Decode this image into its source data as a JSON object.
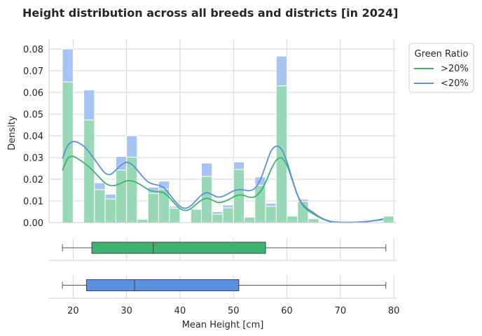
{
  "chart_data": {
    "type": "histogram",
    "title": "Height distribution across all breeds and districts [in 2024]",
    "xlabel": "Mean Height [cm]",
    "ylabel": "Density",
    "xlim": [
      15.5,
      80.5
    ],
    "ylim": [
      0,
      0.0845
    ],
    "x_ticks": [
      20,
      30,
      40,
      50,
      60,
      70,
      80
    ],
    "y_ticks": [
      0.0,
      0.01,
      0.02,
      0.03,
      0.04,
      0.05,
      0.06,
      0.07,
      0.08
    ],
    "x_tick_labels": [
      "20",
      "30",
      "40",
      "50",
      "60",
      "70",
      "80"
    ],
    "y_tick_labels": [
      "0.00",
      "0.01",
      "0.02",
      "0.03",
      "0.04",
      "0.05",
      "0.06",
      "0.07",
      "0.08"
    ],
    "grid": true,
    "legend": {
      "title": "Green Ratio",
      "placement": "upper right, outside plot",
      "entries": [
        ">20%",
        "<20%"
      ]
    },
    "bins": {
      "start": 18,
      "width": 2,
      "count": 31
    },
    "series": [
      {
        "name": ">20%",
        "color": "#3cb371",
        "hist_color": "#98d8b4",
        "hist_values": [
          0.0648,
          0,
          0.0473,
          0.0152,
          0.0109,
          0.0242,
          0.0302,
          0.0015,
          0.0135,
          0.0155,
          0.0067,
          0,
          0.0062,
          0.0213,
          0.0039,
          0.0068,
          0.0245,
          0.0025,
          0.0172,
          0.0075,
          0.063,
          0.003,
          0.0098,
          0.0018,
          0,
          0,
          0,
          0,
          0,
          0,
          0.003
        ],
        "kde_x": [
          18,
          19,
          20,
          21,
          22,
          23,
          24,
          25,
          26,
          27,
          28,
          29,
          30,
          31,
          32,
          33,
          34,
          35,
          36,
          37,
          38,
          39,
          40,
          41,
          42,
          43,
          44,
          45,
          46,
          47,
          48,
          49,
          50,
          51,
          52,
          53,
          54,
          55,
          56,
          57,
          58,
          59,
          60,
          61,
          62,
          63,
          64,
          65,
          66,
          67,
          68,
          69,
          70,
          71,
          72,
          73,
          74,
          75,
          76,
          77,
          78
        ],
        "kde_y": [
          0.024,
          0.0295,
          0.0305,
          0.0292,
          0.0276,
          0.0256,
          0.0232,
          0.0206,
          0.0182,
          0.0171,
          0.0172,
          0.0182,
          0.0192,
          0.0192,
          0.0183,
          0.0169,
          0.0153,
          0.0144,
          0.0142,
          0.0137,
          0.0116,
          0.0088,
          0.0065,
          0.0056,
          0.0064,
          0.0084,
          0.0103,
          0.0112,
          0.0104,
          0.0093,
          0.0095,
          0.0105,
          0.0118,
          0.0127,
          0.0125,
          0.0117,
          0.0119,
          0.0142,
          0.0185,
          0.0243,
          0.0287,
          0.0298,
          0.0264,
          0.0196,
          0.0125,
          0.0079,
          0.0055,
          0.0039,
          0.0025,
          0.0013,
          0.0005,
          0.0002,
          0.0001,
          0.0001,
          0.0001,
          0.0002,
          0.0003,
          0.0005,
          0.0008,
          0.0011,
          0.0014
        ],
        "box": {
          "min": 18,
          "q1": 23.5,
          "median": 35,
          "q3": 56,
          "max": 78.5
        }
      },
      {
        "name": "<20%",
        "color": "#5b8fe0",
        "hist_color": "#a8c4f2",
        "hist_values": [
          0.0152,
          0,
          0.0138,
          0.0031,
          0.0022,
          0.0063,
          0.0098,
          0.0002,
          0.0028,
          0.0036,
          0.0008,
          0,
          0.0002,
          0.0061,
          0.0011,
          0.0013,
          0.0034,
          0.0003,
          0.0038,
          0.0014,
          0.0137,
          0.0001,
          0.001,
          0.0001,
          0,
          0,
          0,
          0,
          0,
          0,
          0.0003
        ],
        "kde_x": [
          18,
          19,
          20,
          21,
          22,
          23,
          24,
          25,
          26,
          27,
          28,
          29,
          30,
          31,
          32,
          33,
          34,
          35,
          36,
          37,
          38,
          39,
          40,
          41,
          42,
          43,
          44,
          45,
          46,
          47,
          48,
          49,
          50,
          51,
          52,
          53,
          54,
          55,
          56,
          57,
          58,
          59,
          60,
          61,
          62,
          63,
          64,
          65,
          66,
          67,
          68,
          69,
          70,
          71,
          72,
          73,
          74,
          75,
          76,
          77,
          78
        ],
        "kde_y": [
          0.0295,
          0.0355,
          0.0373,
          0.0368,
          0.0352,
          0.0325,
          0.0292,
          0.0258,
          0.0228,
          0.0222,
          0.0242,
          0.0265,
          0.0278,
          0.0268,
          0.0242,
          0.0212,
          0.0188,
          0.0177,
          0.0172,
          0.016,
          0.0132,
          0.01,
          0.0075,
          0.0066,
          0.0077,
          0.0102,
          0.0126,
          0.0138,
          0.0129,
          0.0118,
          0.0121,
          0.0133,
          0.0146,
          0.0152,
          0.015,
          0.0147,
          0.0158,
          0.0196,
          0.0262,
          0.0328,
          0.0352,
          0.0337,
          0.028,
          0.02,
          0.0126,
          0.0083,
          0.0062,
          0.0045,
          0.0028,
          0.0015,
          0.0007,
          0.0003,
          0.0002,
          0.0001,
          0.0001,
          0.0002,
          0.0003,
          0.0005,
          0.0008,
          0.0012,
          0.0017
        ],
        "box": {
          "min": 18,
          "q1": 22.5,
          "median": 31.5,
          "q3": 51,
          "max": 78.5
        }
      }
    ]
  }
}
